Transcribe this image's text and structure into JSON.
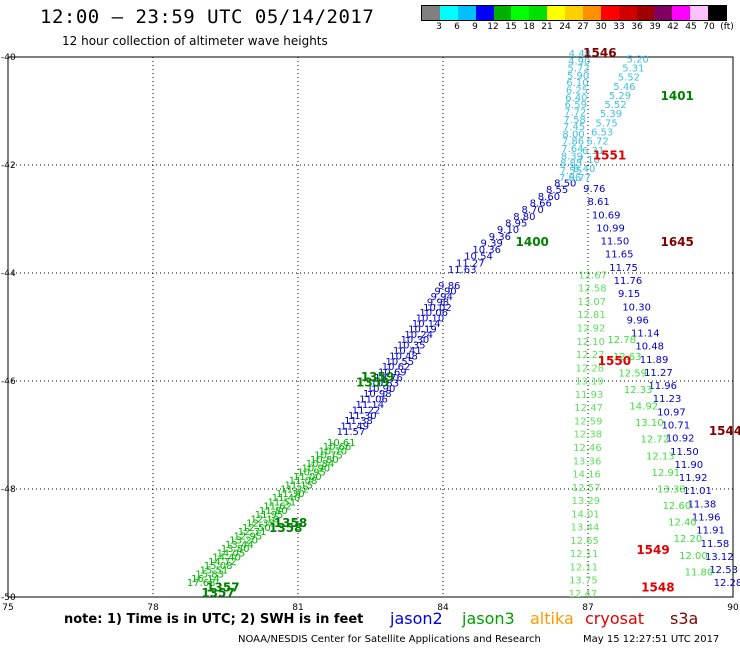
{
  "header": {
    "title": "12:00 – 23:59 UTC 05/14/2017",
    "subtitle": "12 hour collection of altimeter wave heights"
  },
  "colorbar": {
    "colors": [
      "#808080",
      "#00ffff",
      "#00c0ff",
      "#0000ff",
      "#00b000",
      "#00ff00",
      "#00e000",
      "#ffff00",
      "#ffd000",
      "#ff9000",
      "#ff0000",
      "#d00000",
      "#a00000",
      "#800060",
      "#ff00ff",
      "#ffc0ff",
      "#000000"
    ],
    "labels": [
      "3",
      "6",
      "9",
      "12",
      "15",
      "18",
      "21",
      "24",
      "27",
      "30",
      "33",
      "36",
      "39",
      "42",
      "45",
      "70",
      "(ft)"
    ]
  },
  "map": {
    "lon_range": [
      75,
      90
    ],
    "lat_range": [
      -50,
      -40
    ],
    "x_ticks": [
      "75",
      "78",
      "81",
      "84",
      "87",
      "90"
    ],
    "y_ticks": [
      "-40",
      "-42",
      "-44",
      "-46",
      "-48",
      "-50"
    ]
  },
  "tracks": [
    {
      "name": "lower-track",
      "color": "#00b400",
      "start": [
        78.7,
        -49.8
      ],
      "end": [
        81.6,
        -47.2
      ],
      "n": 34,
      "values": [
        "17.68",
        "16.14",
        "15.83",
        "15.51",
        "15.08",
        "14.72",
        "14.40",
        "14.05",
        "13.80",
        "13.44",
        "13.20",
        "12.95",
        "12.71",
        "12.50",
        "12.33",
        "12.10",
        "11.95",
        "11.80",
        "11.62",
        "11.51",
        "11.40",
        "11.30",
        "11.22",
        "11.15",
        "11.08",
        "11.00",
        "10.95",
        "10.90",
        "10.84",
        "10.80",
        "10.75",
        "10.70",
        "10.66",
        "10.61"
      ]
    },
    {
      "name": "lower-track-blue",
      "color": "#0000c8",
      "start": [
        81.8,
        -47.0
      ],
      "end": [
        83.9,
        -44.3
      ],
      "n": 28,
      "values": [
        "11.57",
        "11.49",
        "11.38",
        "11.30",
        "11.22",
        "11.14",
        "11.06",
        "10.98",
        "10.90",
        "10.83",
        "10.76",
        "10.69",
        "10.62",
        "10.55",
        "10.48",
        "10.41",
        "10.35",
        "10.30",
        "10.24",
        "10.19",
        "10.14",
        "10.10",
        "10.06",
        "10.02",
        "9.98",
        "9.94",
        "9.90",
        "9.86"
      ]
    },
    {
      "name": "upper-track-blue",
      "color": "#0000c8",
      "start": [
        84.1,
        -44.0
      ],
      "end": [
        86.3,
        -42.4
      ],
      "n": 14,
      "values": [
        "11.63",
        "11.27",
        "10.54",
        "10.36",
        "9.39",
        "9.36",
        "9.10",
        "8.95",
        "8.80",
        "8.70",
        "8.66",
        "8.60",
        "8.55",
        "8.50"
      ]
    },
    {
      "name": "upper-track-cyan",
      "color": "#40c0e0",
      "start": [
        86.4,
        -42.3
      ],
      "end": [
        86.6,
        -40.0
      ],
      "n": 18,
      "values": [
        "7.96",
        "7.55",
        "8.85",
        "8.39",
        "7.64",
        "7.86",
        "8.00",
        "7.45",
        "7.58",
        "7.72",
        "6.59",
        "6.40",
        "6.25",
        "6.10",
        "5.90",
        "5.72",
        "4.90",
        "4.48"
      ]
    },
    {
      "name": "cross-track-cyan",
      "color": "#40c0e0",
      "start": [
        87.8,
        -40.1
      ],
      "end": [
        86.6,
        -42.3
      ],
      "n": 14,
      "values": [
        "5.20",
        "5.31",
        "5.52",
        "5.46",
        "5.29",
        "5.52",
        "5.39",
        "5.75",
        "6.53",
        "6.72",
        "6.31",
        "7.10",
        "6.40",
        "8.77"
      ]
    },
    {
      "name": "jason3-descend",
      "color": "#60e060",
      "start": [
        86.8,
        -44.1
      ],
      "end": [
        86.6,
        -50.0
      ],
      "n": 25,
      "values": [
        "12.67",
        "12.58",
        "13.07",
        "12.81",
        "12.92",
        "12.10",
        "12.27",
        "12.28",
        "13.19",
        "11.93",
        "12.47",
        "12.59",
        "12.38",
        "12.46",
        "13.36",
        "14.16",
        "12.57",
        "13.29",
        "14.01",
        "13.44",
        "12.65",
        "12.11",
        "12.11",
        "13.75",
        "12.47"
      ]
    },
    {
      "name": "blue-descend",
      "color": "#0000c8",
      "start": [
        86.9,
        -42.5
      ],
      "end": [
        89.6,
        -49.8
      ],
      "n": 31,
      "values": [
        "9.76",
        "8.61",
        "10.69",
        "10.99",
        "11.50",
        "11.65",
        "11.75",
        "11.76",
        "9.15",
        "10.30",
        "9.96",
        "11.14",
        "10.48",
        "11.89",
        "11.27",
        "11.96",
        "11.23",
        "10.97",
        "10.71",
        "10.92",
        "11.50",
        "11.90",
        "11.92",
        "11.01",
        "11.38",
        "11.96",
        "11.91",
        "11.58",
        "13.12",
        "12.53",
        "12.28"
      ]
    },
    {
      "name": "green-descend",
      "color": "#40e040",
      "start": [
        87.4,
        -45.3
      ],
      "end": [
        89.0,
        -49.6
      ],
      "n": 15,
      "values": [
        "12.78",
        "12.63",
        "12.59",
        "12.33",
        "14.92",
        "13.10",
        "12.72",
        "12.13",
        "12.91",
        "13.38",
        "12.60",
        "12.40",
        "12.20",
        "12.00",
        "11.80"
      ]
    }
  ],
  "pass_labels": [
    {
      "text": "1546",
      "color": "#800000",
      "lon": 86.9,
      "lat": -40.0
    },
    {
      "text": "1401",
      "color": "#008000",
      "lon": 88.5,
      "lat": -40.8
    },
    {
      "text": "1551",
      "color": "#e00000",
      "lon": 87.1,
      "lat": -41.9
    },
    {
      "text": "1400",
      "color": "#008000",
      "lon": 85.5,
      "lat": -43.5
    },
    {
      "text": "1645",
      "color": "#800000",
      "lon": 88.5,
      "lat": -43.5
    },
    {
      "text": "1550",
      "color": "#e00000",
      "lon": 87.2,
      "lat": -45.7
    },
    {
      "text": "1359",
      "color": "#008000",
      "lon": 82.3,
      "lat": -46.0
    },
    {
      "text": "1359",
      "color": "#008000",
      "lon": 82.2,
      "lat": -46.1
    },
    {
      "text": "1544",
      "color": "#800000",
      "lon": 89.5,
      "lat": -47.0
    },
    {
      "text": "1358",
      "color": "#008000",
      "lon": 80.5,
      "lat": -48.7
    },
    {
      "text": "1358",
      "color": "#008000",
      "lon": 80.4,
      "lat": -48.8
    },
    {
      "text": "1549",
      "color": "#e00000",
      "lon": 88.0,
      "lat": -49.2
    },
    {
      "text": "1357",
      "color": "#008000",
      "lon": 79.1,
      "lat": -49.9
    },
    {
      "text": "1357",
      "color": "#008000",
      "lon": 79.0,
      "lat": -50.0
    },
    {
      "text": "1548",
      "color": "#e00000",
      "lon": 88.1,
      "lat": -49.9
    }
  ],
  "footer": {
    "note": "note: 1) Time is in UTC; 2) SWH is in feet",
    "legend": [
      {
        "name": "jason2",
        "color": "#0000e0"
      },
      {
        "name": "jason3",
        "color": "#00a000"
      },
      {
        "name": "altika",
        "color": "#ff9900"
      },
      {
        "name": "cryosat",
        "color": "#e00000"
      },
      {
        "name": "s3a",
        "color": "#800000"
      }
    ],
    "credit": "NOAA/NESDIS Center for Satellite Applications and Research",
    "timestamp": "May 15 12:27:51 UTC 2017"
  }
}
